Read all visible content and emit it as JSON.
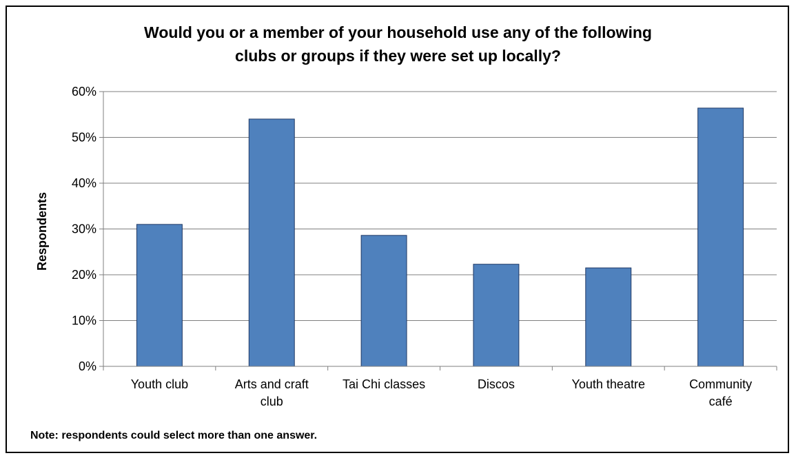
{
  "chart_data": {
    "type": "bar",
    "title_lines": [
      "Would you or a member of your household use any of the following",
      "clubs or groups if they were set up locally?"
    ],
    "ylabel": "Respondents",
    "xlabel": "",
    "categories": [
      [
        "Youth club"
      ],
      [
        "Arts and craft",
        "club"
      ],
      [
        "Tai Chi classes"
      ],
      [
        "Discos"
      ],
      [
        "Youth theatre"
      ],
      [
        "Community",
        "café"
      ]
    ],
    "values": [
      31,
      54,
      28.6,
      22.3,
      21.5,
      56.4
    ],
    "ylim": [
      0,
      60
    ],
    "yticks": [
      "0%",
      "10%",
      "20%",
      "30%",
      "40%",
      "50%",
      "60%"
    ],
    "grid": true,
    "legend": "none",
    "bar_color": "#4F81BD",
    "bar_edge_color": "#1F3864",
    "note": "Note: respondents could select more than one answer."
  }
}
